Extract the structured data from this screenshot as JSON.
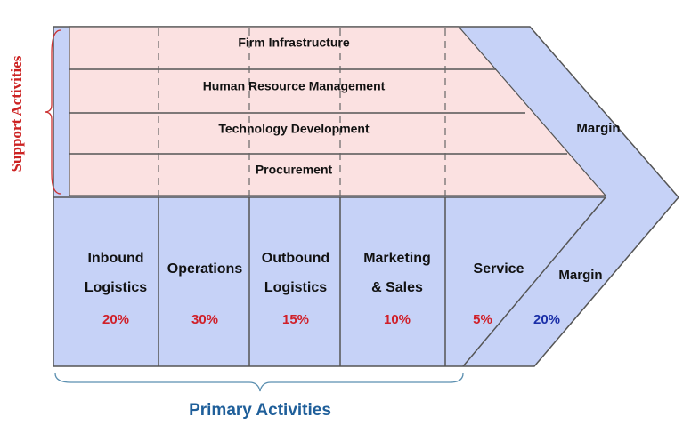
{
  "support": {
    "label": "Support Activities",
    "rows": [
      "Firm Infrastructure",
      "Human Resource Management",
      "Technology Development",
      "Procurement"
    ]
  },
  "primary": {
    "label": "Primary Activities",
    "activities": [
      {
        "lines": [
          "Inbound",
          "Logistics"
        ],
        "share": "20%"
      },
      {
        "lines": [
          "Operations"
        ],
        "share": "30%"
      },
      {
        "lines": [
          "Outbound",
          "Logistics"
        ],
        "share": "15%"
      },
      {
        "lines": [
          "Marketing",
          "& Sales"
        ],
        "share": "10%"
      },
      {
        "lines": [
          "Service"
        ],
        "share": "5%"
      }
    ]
  },
  "margin": {
    "upper": "Margin",
    "lower": "Margin",
    "share": "20%"
  }
}
